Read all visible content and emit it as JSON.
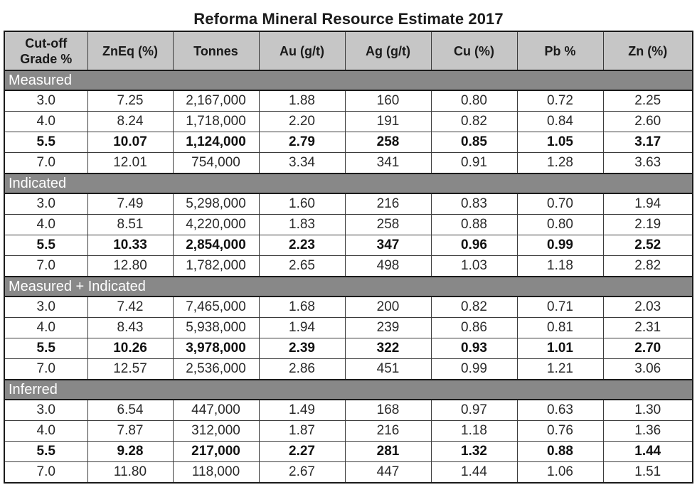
{
  "title": "Reforma Mineral Resource Estimate 2017",
  "columns": [
    "Cut-off Grade %",
    "ZnEq (%)",
    "Tonnes",
    "Au (g/t)",
    "Ag (g/t)",
    "Cu (%)",
    "Pb %",
    "Zn (%)"
  ],
  "sections": [
    {
      "name": "Measured",
      "rows": [
        {
          "bold": false,
          "cells": [
            "3.0",
            "7.25",
            "2,167,000",
            "1.88",
            "160",
            "0.80",
            "0.72",
            "2.25"
          ]
        },
        {
          "bold": false,
          "cells": [
            "4.0",
            "8.24",
            "1,718,000",
            "2.20",
            "191",
            "0.82",
            "0.84",
            "2.60"
          ]
        },
        {
          "bold": true,
          "cells": [
            "5.5",
            "10.07",
            "1,124,000",
            "2.79",
            "258",
            "0.85",
            "1.05",
            "3.17"
          ]
        },
        {
          "bold": false,
          "cells": [
            "7.0",
            "12.01",
            "754,000",
            "3.34",
            "341",
            "0.91",
            "1.28",
            "3.63"
          ]
        }
      ]
    },
    {
      "name": "Indicated",
      "rows": [
        {
          "bold": false,
          "cells": [
            "3.0",
            "7.49",
            "5,298,000",
            "1.60",
            "216",
            "0.83",
            "0.70",
            "1.94"
          ]
        },
        {
          "bold": false,
          "cells": [
            "4.0",
            "8.51",
            "4,220,000",
            "1.83",
            "258",
            "0.88",
            "0.80",
            "2.19"
          ]
        },
        {
          "bold": true,
          "cells": [
            "5.5",
            "10.33",
            "2,854,000",
            "2.23",
            "347",
            "0.96",
            "0.99",
            "2.52"
          ]
        },
        {
          "bold": false,
          "cells": [
            "7.0",
            "12.80",
            "1,782,000",
            "2.65",
            "498",
            "1.03",
            "1.18",
            "2.82"
          ]
        }
      ]
    },
    {
      "name": "Measured + Indicated",
      "rows": [
        {
          "bold": false,
          "cells": [
            "3.0",
            "7.42",
            "7,465,000",
            "1.68",
            "200",
            "0.82",
            "0.71",
            "2.03"
          ]
        },
        {
          "bold": false,
          "cells": [
            "4.0",
            "8.43",
            "5,938,000",
            "1.94",
            "239",
            "0.86",
            "0.81",
            "2.31"
          ]
        },
        {
          "bold": true,
          "cells": [
            "5.5",
            "10.26",
            "3,978,000",
            "2.39",
            "322",
            "0.93",
            "1.01",
            "2.70"
          ]
        },
        {
          "bold": false,
          "cells": [
            "7.0",
            "12.57",
            "2,536,000",
            "2.86",
            "451",
            "0.99",
            "1.21",
            "3.06"
          ]
        }
      ]
    },
    {
      "name": "Inferred",
      "rows": [
        {
          "bold": false,
          "cells": [
            "3.0",
            "6.54",
            "447,000",
            "1.49",
            "168",
            "0.97",
            "0.63",
            "1.30"
          ]
        },
        {
          "bold": false,
          "cells": [
            "4.0",
            "7.87",
            "312,000",
            "1.87",
            "216",
            "1.18",
            "0.76",
            "1.36"
          ]
        },
        {
          "bold": true,
          "cells": [
            "5.5",
            "9.28",
            "217,000",
            "2.27",
            "281",
            "1.32",
            "0.88",
            "1.44"
          ]
        },
        {
          "bold": false,
          "cells": [
            "7.0",
            "11.80",
            "118,000",
            "2.67",
            "447",
            "1.44",
            "1.06",
            "1.51"
          ]
        }
      ]
    }
  ]
}
